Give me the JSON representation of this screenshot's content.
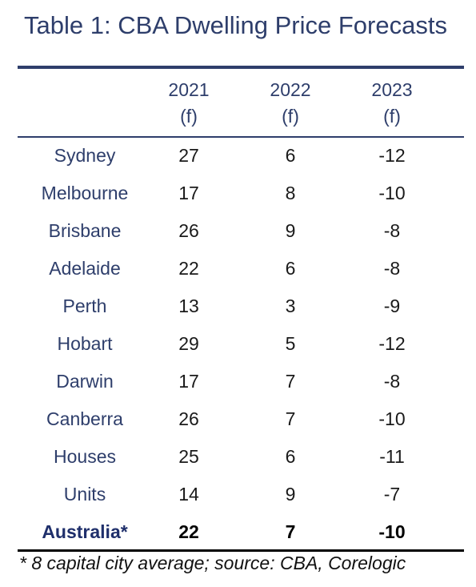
{
  "chart_data": {
    "type": "table",
    "title": "Table 1: CBA Dwelling Price Forecasts",
    "columns": [
      {
        "year": "2021",
        "note": "(f)"
      },
      {
        "year": "2022",
        "note": "(f)"
      },
      {
        "year": "2023",
        "note": "(f)"
      }
    ],
    "rows": [
      {
        "label": "Sydney",
        "values": [
          "27",
          "6",
          "-12"
        ]
      },
      {
        "label": "Melbourne",
        "values": [
          "17",
          "8",
          "-10"
        ]
      },
      {
        "label": "Brisbane",
        "values": [
          "26",
          "9",
          "-8"
        ]
      },
      {
        "label": "Adelaide",
        "values": [
          "22",
          "6",
          "-8"
        ]
      },
      {
        "label": "Perth",
        "values": [
          "13",
          "3",
          "-9"
        ]
      },
      {
        "label": "Hobart",
        "values": [
          "29",
          "5",
          "-12"
        ]
      },
      {
        "label": "Darwin",
        "values": [
          "17",
          "7",
          "-8"
        ]
      },
      {
        "label": "Canberra",
        "values": [
          "26",
          "7",
          "-10"
        ]
      },
      {
        "label": "Houses",
        "values": [
          "25",
          "6",
          "-11"
        ]
      },
      {
        "label": "Units",
        "values": [
          "14",
          "9",
          "-7"
        ]
      },
      {
        "label": "Australia*",
        "values": [
          "22",
          "7",
          "-10"
        ],
        "emphasis": true
      }
    ],
    "footnote": "* 8 capital city average; source: CBA, Corelogic"
  },
  "colors": {
    "title": "#2e3e6b",
    "rule": "#2e3e6b",
    "bottom_rule": "#000000"
  }
}
